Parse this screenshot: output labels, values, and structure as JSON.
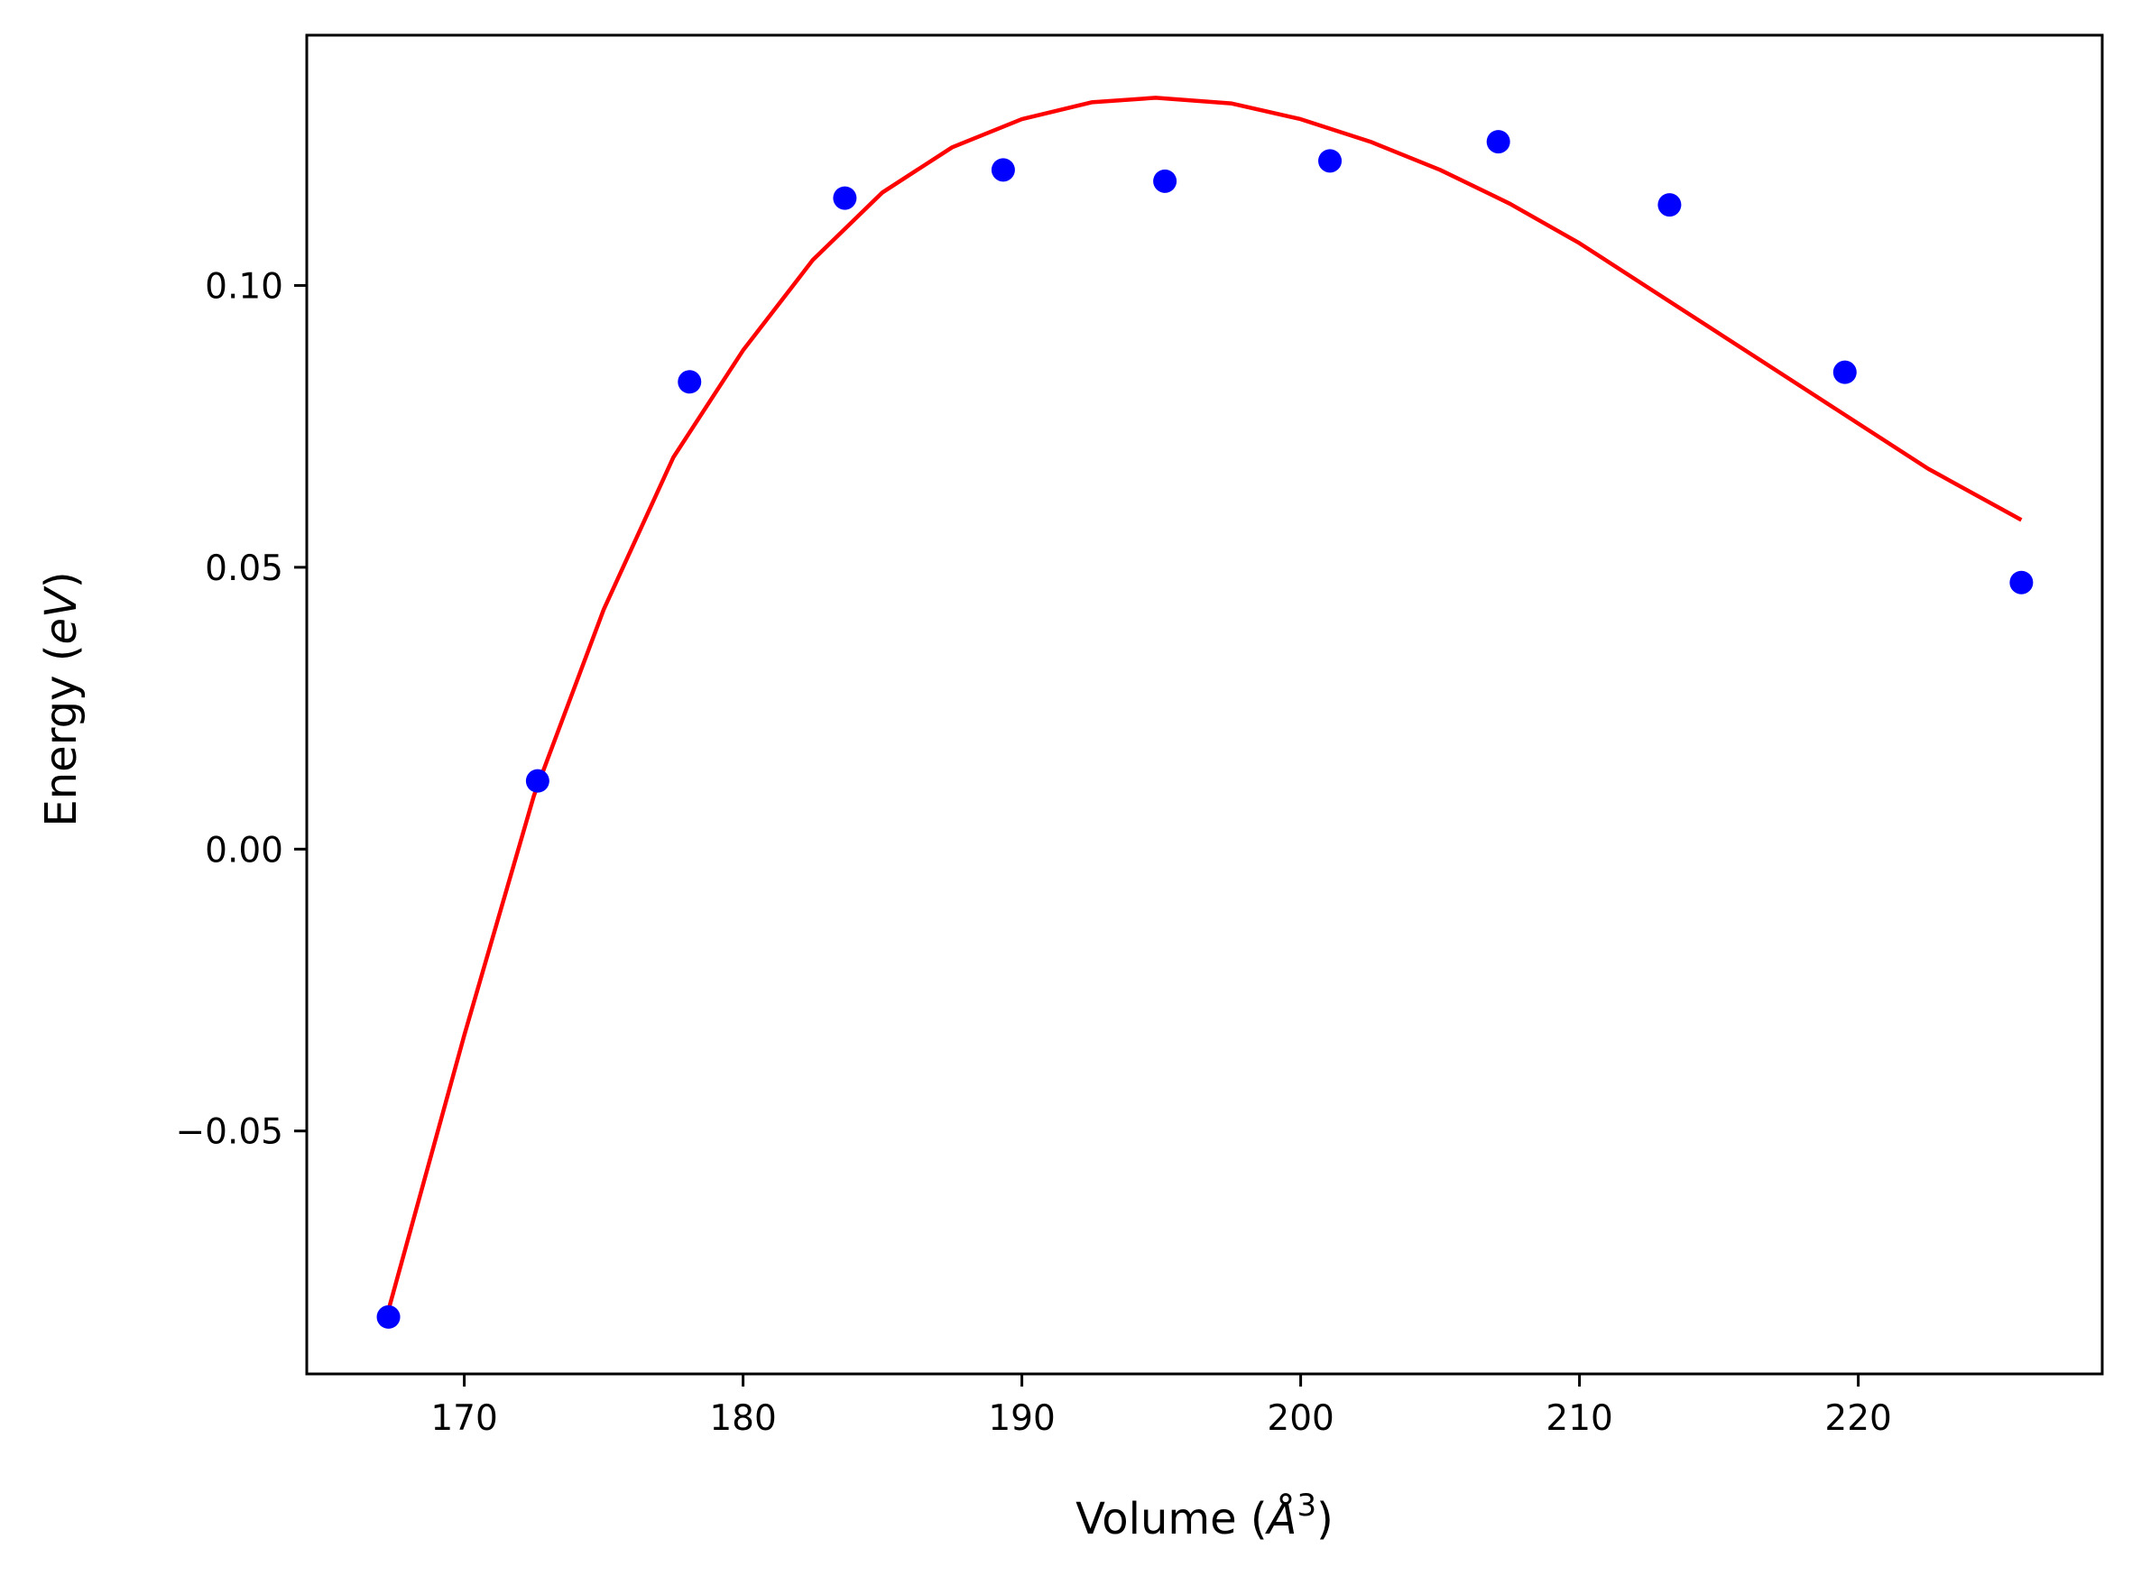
{
  "chart_data": {
    "type": "scatter",
    "title": "",
    "xlabel": {
      "main": "Volume (",
      "italic": "Å",
      "sup": "3",
      "close": ")"
    },
    "ylabel": {
      "main": "Energy (",
      "italic": "eV",
      "close": ")"
    },
    "xlim": [
      164.35,
      228.75
    ],
    "ylim": [
      -0.0931,
      0.1444
    ],
    "x_ticks": [
      170,
      180,
      190,
      200,
      210,
      220
    ],
    "x_tick_labels": [
      "170",
      "180",
      "190",
      "200",
      "210",
      "220"
    ],
    "y_ticks": [
      -0.05,
      0.0,
      0.05,
      0.1
    ],
    "y_tick_labels": [
      "−0.05",
      "0.00",
      "0.05",
      "0.10"
    ],
    "grid": false,
    "legend": "none",
    "series": [
      {
        "kind": "points",
        "color": "#0000ff",
        "x": [
          167.28,
          172.63,
          178.08,
          183.65,
          189.33,
          195.13,
          201.05,
          207.09,
          213.23,
          219.52,
          225.85
        ],
        "y": [
          -0.083,
          0.0121,
          0.0829,
          0.1155,
          0.1205,
          0.1185,
          0.1221,
          0.1255,
          0.1143,
          0.0846,
          0.0473
        ]
      },
      {
        "kind": "line",
        "color": "#ff0000",
        "x": [
          167.28,
          170.0,
          172.5,
          175.0,
          177.5,
          180.0,
          182.5,
          185.0,
          187.5,
          190.0,
          192.5,
          194.8,
          197.5,
          200.0,
          202.5,
          205.0,
          207.5,
          210.0,
          212.5,
          215.0,
          217.5,
          220.0,
          222.5,
          225.85
        ],
        "y": [
          -0.0818,
          -0.033,
          0.0095,
          0.0425,
          0.0695,
          0.0885,
          0.1045,
          0.1165,
          0.1245,
          0.1295,
          0.1325,
          0.1333,
          0.1323,
          0.1295,
          0.1255,
          0.1205,
          0.1145,
          0.1075,
          0.0995,
          0.0915,
          0.0835,
          0.0755,
          0.0675,
          0.0584
        ]
      }
    ]
  }
}
